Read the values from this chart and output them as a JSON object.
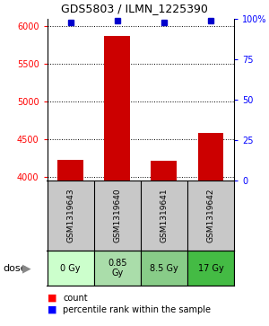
{
  "title": "GDS5803 / ILMN_1225390",
  "samples": [
    "GSM1319643",
    "GSM1319640",
    "GSM1319641",
    "GSM1319642"
  ],
  "doses": [
    "0 Gy",
    "0.85\nGy",
    "8.5 Gy",
    "17 Gy"
  ],
  "dose_colors": [
    "#ccffcc",
    "#aaddaa",
    "#88cc88",
    "#44bb44"
  ],
  "counts": [
    4230,
    5870,
    4220,
    4590
  ],
  "percentiles": [
    98,
    99,
    98,
    99
  ],
  "ylim_left": [
    3950,
    6100
  ],
  "yticks_left": [
    4000,
    4500,
    5000,
    5500,
    6000
  ],
  "ytick_labels_left": [
    "4000",
    "4500",
    "5000",
    "5500",
    "6000"
  ],
  "yticks_right": [
    0,
    25,
    50,
    75,
    100
  ],
  "ytick_labels_right": [
    "0",
    "25",
    "50",
    "75",
    "100%"
  ],
  "bar_color": "#cc0000",
  "dot_color": "#0000cc",
  "bar_width": 0.55,
  "background_color": "#ffffff",
  "sample_bg": "#c8c8c8",
  "grid_linestyle": ":",
  "grid_linewidth": 0.7,
  "grid_color": "#000000"
}
